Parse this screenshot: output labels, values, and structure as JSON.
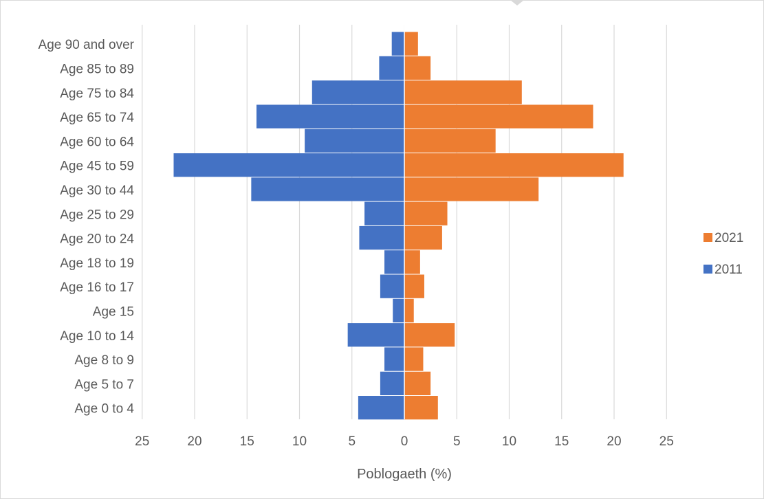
{
  "chart_data": {
    "type": "bar",
    "orientation": "horizontal",
    "layout": "population-pyramid",
    "categories": [
      "Age 0 to 4",
      "Age 5 to 7",
      "Age 8 to 9",
      "Age 10 to 14",
      "Age 15",
      "Age 16 to 17",
      "Age 18 to 19",
      "Age 20 to 24",
      "Age 25 to 29",
      "Age 30 to 44",
      "Age 45 to 59",
      "Age 60 to 64",
      "Age 65 to 74",
      "Age 75 to 84",
      "Age 85 to 89",
      "Age 90 and over"
    ],
    "series": [
      {
        "name": "2011",
        "color": "#4472c4",
        "side": "left",
        "values": [
          4.4,
          2.3,
          1.9,
          5.4,
          1.1,
          2.3,
          1.9,
          4.3,
          3.8,
          14.6,
          22.0,
          9.5,
          14.1,
          8.8,
          2.4,
          1.2
        ]
      },
      {
        "name": "2021",
        "color": "#ed7d31",
        "side": "right",
        "values": [
          3.2,
          2.5,
          1.8,
          4.8,
          0.9,
          1.9,
          1.5,
          3.6,
          4.1,
          12.8,
          20.9,
          8.7,
          18.0,
          11.2,
          2.5,
          1.3
        ]
      }
    ],
    "xlim": [
      -25,
      25
    ],
    "xticks": [
      25,
      20,
      15,
      10,
      5,
      0,
      5,
      10,
      15,
      20,
      25
    ],
    "xlabel": "Poblogaeth (%)",
    "ylabel": "",
    "title": "",
    "grid": "vertical",
    "legend": {
      "position": "right",
      "entries": [
        "2021",
        "2011"
      ]
    }
  }
}
